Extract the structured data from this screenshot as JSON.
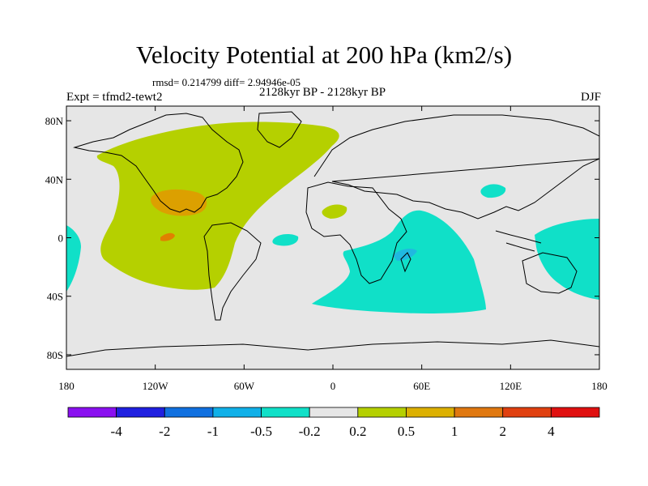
{
  "title": "Velocity Potential at 200 hPa (km2/s)",
  "stats": "rmsd= 0.214799 diff= 2.94946e-05",
  "experiment": "Expt = tfmd2-tewt2",
  "period": "2128kyr BP - 2128kyr BP",
  "season": "DJF",
  "colors": {
    "ocean_land_bg": "#e6e6e6",
    "positive_02_05": "#b5d000",
    "positive_1_2": "#dca000",
    "positive_2_4": "#e08000",
    "negative_05_02": "#10e0c8",
    "negative_1_05": "#20b8e0"
  },
  "x_ticks": [
    "180",
    "120W",
    "60W",
    "0",
    "60E",
    "120E",
    "180"
  ],
  "y_ticks": [
    "80N",
    "40N",
    "0",
    "40S",
    "80S"
  ],
  "colorbar": {
    "colors": [
      "#8a10f0",
      "#2020e0",
      "#1070e0",
      "#10b0e8",
      "#10e0c8",
      "#e6e6e6",
      "#b5d000",
      "#dcb000",
      "#e07810",
      "#e04010",
      "#e01010"
    ],
    "labels": [
      "-4",
      "-2",
      "-1",
      "-0.5",
      "-0.2",
      "0.2",
      "0.5",
      "1",
      "2",
      "4"
    ]
  }
}
